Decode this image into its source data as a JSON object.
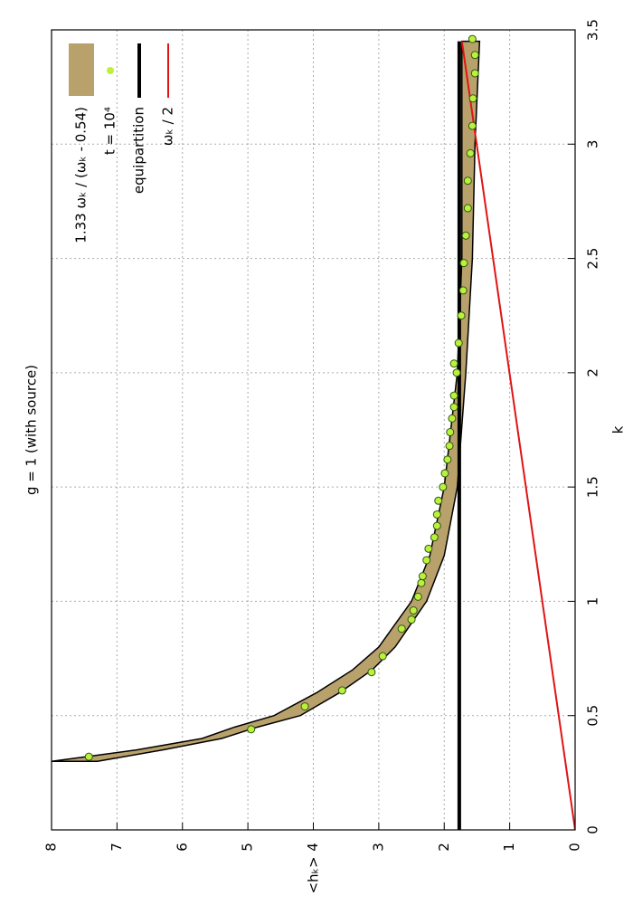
{
  "chart_data": {
    "type": "mixed",
    "title": "g = 1  (with source)",
    "xlabel": "k",
    "ylabel": "<hₖ>",
    "xlim": [
      0,
      3.5
    ],
    "ylim": [
      0,
      8
    ],
    "xticks": [
      0,
      0.5,
      1,
      1.5,
      2,
      2.5,
      3,
      3.5
    ],
    "yticks": [
      0,
      1,
      2,
      3,
      4,
      5,
      6,
      7,
      8
    ],
    "grid": true,
    "legend": "top-right",
    "series": [
      {
        "name": "1.33 ωₖ / (ωₖ - 0.54)",
        "type": "band",
        "color": "#b9a16c",
        "x": [
          0.3,
          0.35,
          0.4,
          0.45,
          0.5,
          0.6,
          0.7,
          0.8,
          1.0,
          1.2,
          1.5,
          2.0,
          2.5,
          3.0,
          3.45
        ],
        "upper": [
          8,
          6.7,
          5.7,
          5.2,
          4.6,
          3.95,
          3.4,
          3.0,
          2.5,
          2.22,
          2.0,
          1.8,
          1.73,
          1.73,
          1.73
        ],
        "lower": [
          7.3,
          6.3,
          5.4,
          4.85,
          4.2,
          3.6,
          3.1,
          2.75,
          2.27,
          2.0,
          1.8,
          1.67,
          1.57,
          1.53,
          1.46
        ]
      },
      {
        "name": "t = 10⁴",
        "type": "scatter",
        "color": "#bdf03c",
        "x": [
          0.32,
          0.44,
          0.54,
          0.61,
          0.69,
          0.76,
          0.88,
          0.92,
          0.96,
          1.02,
          1.08,
          1.11,
          1.18,
          1.23,
          1.28,
          1.33,
          1.38,
          1.44,
          1.5,
          1.56,
          1.62,
          1.68,
          1.74,
          1.8,
          1.85,
          1.9,
          2.0,
          2.04,
          2.13,
          2.25,
          2.36,
          2.48,
          2.6,
          2.72,
          2.84,
          2.96,
          3.08,
          3.2,
          3.31,
          3.39,
          3.46
        ],
        "values": [
          7.43,
          4.95,
          4.13,
          3.56,
          3.11,
          2.94,
          2.65,
          2.5,
          2.47,
          2.4,
          2.35,
          2.33,
          2.27,
          2.24,
          2.15,
          2.11,
          2.11,
          2.09,
          2.02,
          1.99,
          1.95,
          1.92,
          1.91,
          1.88,
          1.85,
          1.85,
          1.81,
          1.85,
          1.78,
          1.74,
          1.71,
          1.7,
          1.67,
          1.64,
          1.64,
          1.6,
          1.57,
          1.56,
          1.53,
          1.53,
          1.57
        ]
      },
      {
        "name": "equipartition",
        "type": "line",
        "color": "#000000",
        "width": 4,
        "x": [
          0,
          3.45
        ],
        "values": [
          1.77,
          1.77
        ]
      },
      {
        "name": "ωₖ / 2",
        "type": "line",
        "color": "#e01414",
        "width": 2,
        "x": [
          0,
          3.45
        ],
        "values": [
          0,
          1.73
        ]
      }
    ]
  }
}
